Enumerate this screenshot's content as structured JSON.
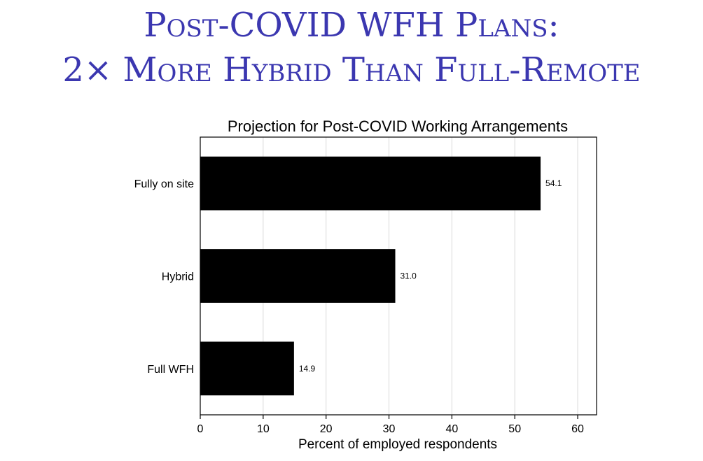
{
  "slide": {
    "title_line1": "Post-COVID WFH Plans:",
    "title_line2": "2× More Hybrid Than Full-Remote",
    "title_color": "#3b37b0"
  },
  "chart_data": {
    "type": "bar",
    "orientation": "horizontal",
    "title": "Projection for Post-COVID Working Arrangements",
    "categories": [
      "Fully on site",
      "Hybrid",
      "Full WFH"
    ],
    "values": [
      54.1,
      31.0,
      14.9
    ],
    "value_labels": [
      "54.1",
      "31.0",
      "14.9"
    ],
    "xlabel": "Percent of employed respondents",
    "ylabel": "",
    "xlim": [
      0,
      63
    ],
    "xticks": [
      0,
      10,
      20,
      30,
      40,
      50,
      60
    ],
    "grid": "vertical",
    "bar_color": "#000000",
    "grid_color": "#d9d9d9"
  }
}
